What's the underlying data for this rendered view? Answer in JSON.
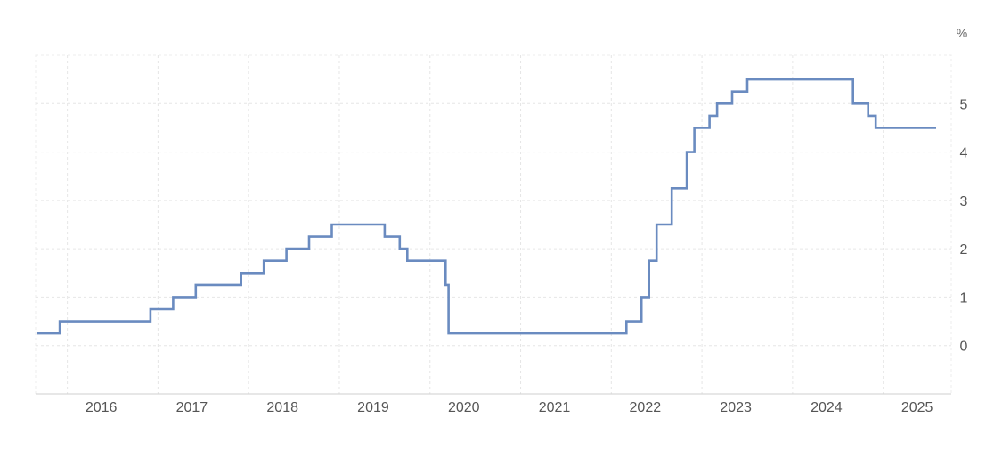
{
  "chart_data": {
    "type": "line",
    "step": true,
    "y_unit": "%",
    "ylim": [
      -1,
      6
    ],
    "yticks": [
      0,
      1,
      2,
      3,
      4,
      5
    ],
    "xlim": [
      2015.65,
      2025.75
    ],
    "xticks": [
      {
        "label": "2016",
        "value": 2016
      },
      {
        "label": "2017",
        "value": 2017
      },
      {
        "label": "2018",
        "value": 2018
      },
      {
        "label": "2019",
        "value": 2019
      },
      {
        "label": "2020",
        "value": 2020
      },
      {
        "label": "2021",
        "value": 2021
      },
      {
        "label": "2022",
        "value": 2022
      },
      {
        "label": "2023",
        "value": 2023
      },
      {
        "label": "2024",
        "value": 2024
      },
      {
        "label": "2025",
        "value": 2025
      }
    ],
    "grid": true,
    "line_color": "#6a8bc0",
    "series": [
      {
        "points": [
          {
            "x": "2015-09",
            "y": 0.25
          },
          {
            "x": "2015-12",
            "y": 0.5
          },
          {
            "x": "2016-12",
            "y": 0.75
          },
          {
            "x": "2017-03",
            "y": 1.0
          },
          {
            "x": "2017-06",
            "y": 1.25
          },
          {
            "x": "2017-12",
            "y": 1.5
          },
          {
            "x": "2018-03",
            "y": 1.75
          },
          {
            "x": "2018-06",
            "y": 2.0
          },
          {
            "x": "2018-09",
            "y": 2.25
          },
          {
            "x": "2018-12",
            "y": 2.5
          },
          {
            "x": "2019-07",
            "y": 2.25
          },
          {
            "x": "2019-09",
            "y": 2.0
          },
          {
            "x": "2019-10",
            "y": 1.75
          },
          {
            "x": "2020-03-03",
            "y": 1.25
          },
          {
            "x": "2020-03-15",
            "y": 0.25
          },
          {
            "x": "2022-03",
            "y": 0.5
          },
          {
            "x": "2022-05",
            "y": 1.0
          },
          {
            "x": "2022-06",
            "y": 1.75
          },
          {
            "x": "2022-07",
            "y": 2.5
          },
          {
            "x": "2022-09",
            "y": 3.25
          },
          {
            "x": "2022-11",
            "y": 4.0
          },
          {
            "x": "2022-12",
            "y": 4.5
          },
          {
            "x": "2023-02",
            "y": 4.75
          },
          {
            "x": "2023-03",
            "y": 5.0
          },
          {
            "x": "2023-05",
            "y": 5.25
          },
          {
            "x": "2023-07",
            "y": 5.5
          },
          {
            "x": "2024-09",
            "y": 5.0
          },
          {
            "x": "2024-11",
            "y": 4.75
          },
          {
            "x": "2024-12",
            "y": 4.5
          },
          {
            "x": "2025-08",
            "y": 4.5
          }
        ]
      }
    ]
  }
}
